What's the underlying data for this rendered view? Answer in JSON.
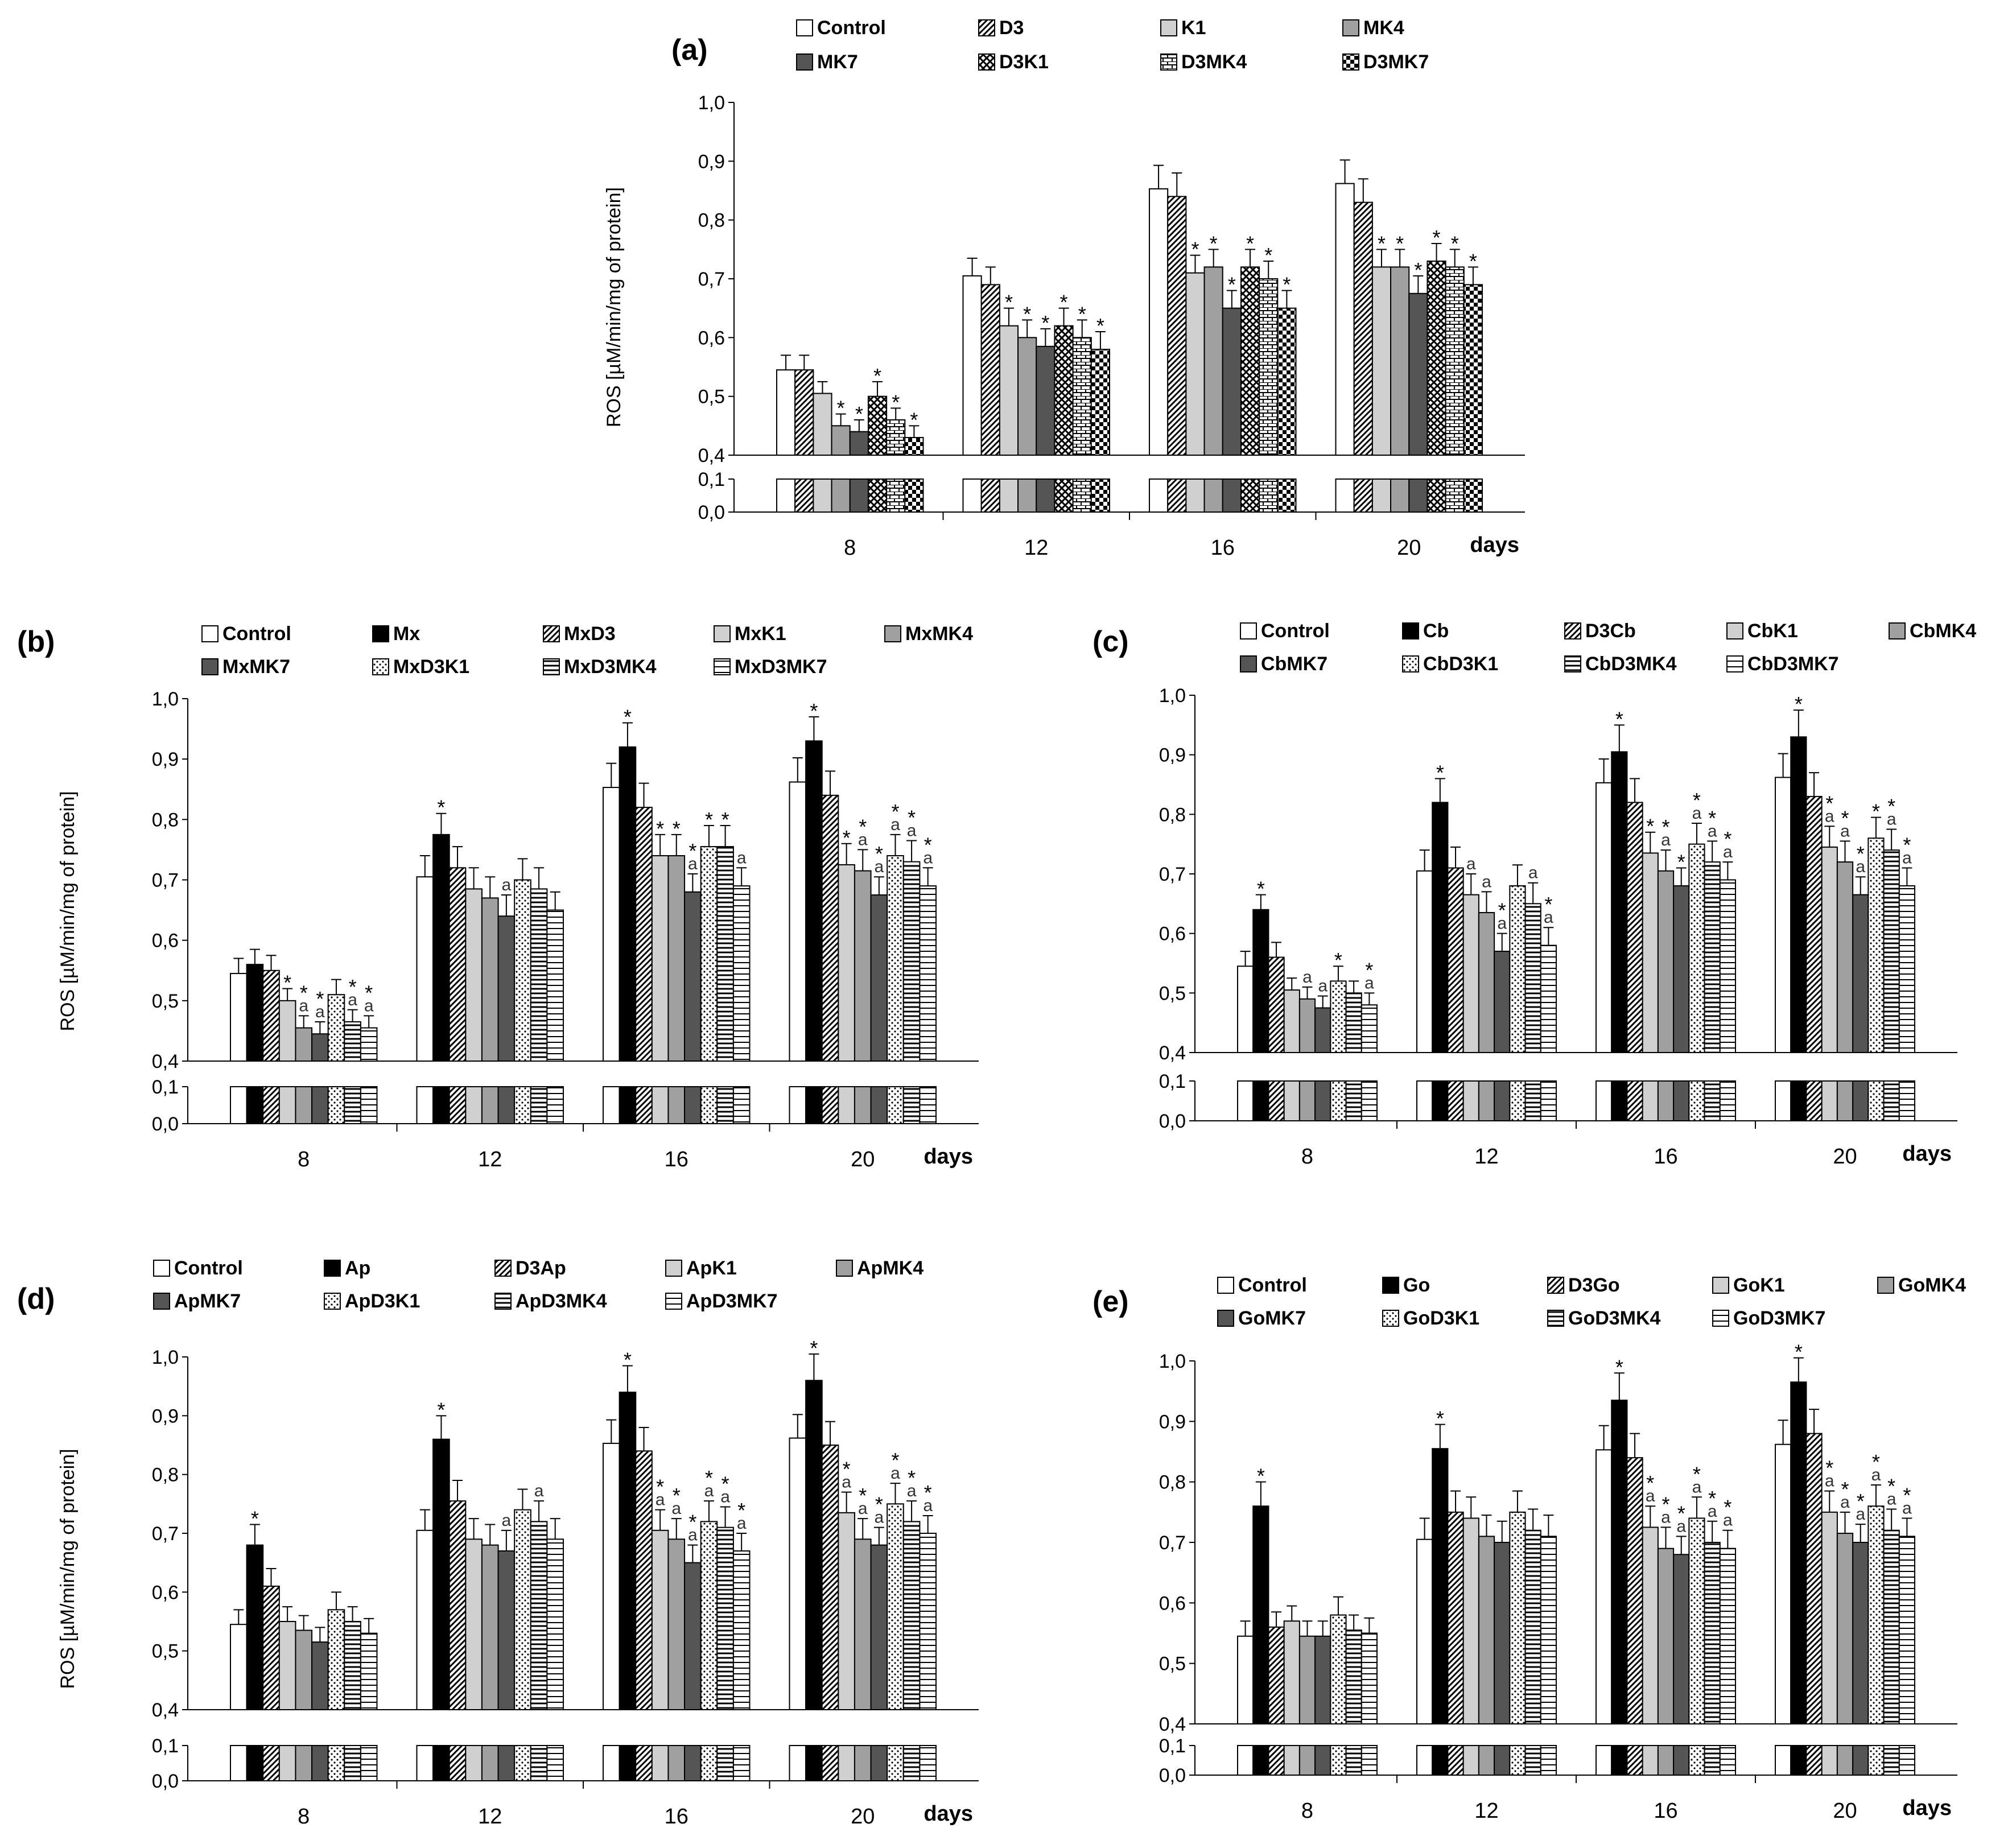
{
  "figure": {
    "y_axis_title": "ROS [µM/min/mg of protein]",
    "days_label": "days",
    "y_ticks_upper": [
      "0,4",
      "0,5",
      "0,6",
      "0,7",
      "0,8",
      "0,9",
      "1,0"
    ],
    "y_ticks_lower": [
      "0,0",
      "0,1"
    ]
  },
  "chart_data": [
    {
      "panel": "(a)",
      "type": "bar",
      "categories": [
        "8",
        "12",
        "16",
        "20"
      ],
      "xlabel": "days",
      "ylabel": "ROS [µM/min/mg of protein]",
      "ylim": [
        0.4,
        1.0
      ],
      "broken_axis_lower": [
        0.0,
        0.1
      ],
      "series": [
        {
          "name": "Control",
          "pattern": "white",
          "values": [
            0.545,
            0.705,
            0.853,
            0.862
          ],
          "errors": [
            0.025,
            0.03,
            0.04,
            0.04
          ],
          "marks": [
            "",
            "",
            "",
            ""
          ]
        },
        {
          "name": "D3",
          "pattern": "diag",
          "values": [
            0.545,
            0.69,
            0.84,
            0.83
          ],
          "errors": [
            0.025,
            0.03,
            0.04,
            0.04
          ],
          "marks": [
            "",
            "",
            "",
            ""
          ]
        },
        {
          "name": "K1",
          "pattern": "lightgray",
          "values": [
            0.505,
            0.62,
            0.71,
            0.72
          ],
          "errors": [
            0.02,
            0.03,
            0.03,
            0.03
          ],
          "marks": [
            "",
            "*",
            "*",
            "*"
          ]
        },
        {
          "name": "MK4",
          "pattern": "midgray",
          "values": [
            0.45,
            0.6,
            0.72,
            0.72
          ],
          "errors": [
            0.02,
            0.03,
            0.03,
            0.03
          ],
          "marks": [
            "*",
            "*",
            "*",
            "*"
          ]
        },
        {
          "name": "MK7",
          "pattern": "darkgray",
          "values": [
            0.44,
            0.585,
            0.65,
            0.675
          ],
          "errors": [
            0.02,
            0.03,
            0.03,
            0.03
          ],
          "marks": [
            "*",
            "*",
            "*",
            "*"
          ]
        },
        {
          "name": "D3K1",
          "pattern": "crosshatch",
          "values": [
            0.5,
            0.62,
            0.72,
            0.73
          ],
          "errors": [
            0.025,
            0.03,
            0.03,
            0.03
          ],
          "marks": [
            "*",
            "*",
            "*",
            "*"
          ]
        },
        {
          "name": "D3MK4",
          "pattern": "brick",
          "values": [
            0.46,
            0.6,
            0.7,
            0.72
          ],
          "errors": [
            0.02,
            0.03,
            0.03,
            0.03
          ],
          "marks": [
            "*",
            "*",
            "*",
            "*"
          ]
        },
        {
          "name": "D3MK7",
          "pattern": "checker",
          "values": [
            0.43,
            0.58,
            0.65,
            0.69
          ],
          "errors": [
            0.02,
            0.03,
            0.03,
            0.03
          ],
          "marks": [
            "*",
            "*",
            "*",
            "*"
          ]
        }
      ]
    },
    {
      "panel": "(b)",
      "type": "bar",
      "categories": [
        "8",
        "12",
        "16",
        "20"
      ],
      "xlabel": "days",
      "ylabel": "ROS [µM/min/mg of protein]",
      "ylim": [
        0.4,
        1.0
      ],
      "broken_axis_lower": [
        0.0,
        0.1
      ],
      "series": [
        {
          "name": "Control",
          "pattern": "white",
          "values": [
            0.545,
            0.705,
            0.853,
            0.862
          ],
          "errors": [
            0.025,
            0.035,
            0.04,
            0.04
          ],
          "marks": [
            "",
            "",
            "",
            ""
          ]
        },
        {
          "name": "Mx",
          "pattern": "black",
          "values": [
            0.56,
            0.775,
            0.92,
            0.93
          ],
          "errors": [
            0.025,
            0.035,
            0.04,
            0.04
          ],
          "marks": [
            "",
            "*",
            "*",
            "*"
          ]
        },
        {
          "name": "MxD3",
          "pattern": "diag",
          "values": [
            0.55,
            0.72,
            0.82,
            0.84
          ],
          "errors": [
            0.025,
            0.035,
            0.04,
            0.04
          ],
          "marks": [
            "",
            "",
            "",
            ""
          ]
        },
        {
          "name": "MxK1",
          "pattern": "lightgray",
          "values": [
            0.5,
            0.685,
            0.74,
            0.725
          ],
          "errors": [
            0.02,
            0.035,
            0.035,
            0.035
          ],
          "marks": [
            "*",
            "",
            "*",
            "*"
          ]
        },
        {
          "name": "MxMK4",
          "pattern": "midgray",
          "values": [
            0.455,
            0.67,
            0.74,
            0.715
          ],
          "errors": [
            0.02,
            0.035,
            0.035,
            0.035
          ],
          "marks": [
            "*a",
            "",
            "*",
            "*a"
          ]
        },
        {
          "name": "MxMK7",
          "pattern": "darkgray",
          "values": [
            0.445,
            0.64,
            0.68,
            0.675
          ],
          "errors": [
            0.02,
            0.035,
            0.03,
            0.03
          ],
          "marks": [
            "*a",
            "a",
            "*a",
            "*a"
          ]
        },
        {
          "name": "MxD3K1",
          "pattern": "dots",
          "values": [
            0.51,
            0.7,
            0.755,
            0.74
          ],
          "errors": [
            0.025,
            0.035,
            0.035,
            0.035
          ],
          "marks": [
            "",
            "",
            "*",
            "*a"
          ]
        },
        {
          "name": "MxD3MK4",
          "pattern": "hlines",
          "values": [
            0.465,
            0.685,
            0.755,
            0.73
          ],
          "errors": [
            0.02,
            0.035,
            0.035,
            0.035
          ],
          "marks": [
            "*a",
            "",
            "*",
            "*a"
          ]
        },
        {
          "name": "MxD3MK7",
          "pattern": "hlines2",
          "values": [
            0.455,
            0.65,
            0.69,
            0.69
          ],
          "errors": [
            0.02,
            0.03,
            0.03,
            0.03
          ],
          "marks": [
            "*a",
            "",
            "a",
            "*a"
          ]
        }
      ]
    },
    {
      "panel": "(c)",
      "type": "bar",
      "categories": [
        "8",
        "12",
        "16",
        "20"
      ],
      "xlabel": "days",
      "ylabel": "",
      "ylim": [
        0.4,
        1.0
      ],
      "broken_axis_lower": [
        0.0,
        0.1
      ],
      "series": [
        {
          "name": "Control",
          "pattern": "white",
          "values": [
            0.545,
            0.705,
            0.853,
            0.862
          ],
          "errors": [
            0.025,
            0.035,
            0.04,
            0.04
          ],
          "marks": [
            "",
            "",
            "",
            ""
          ]
        },
        {
          "name": "Cb",
          "pattern": "black",
          "values": [
            0.64,
            0.82,
            0.905,
            0.93
          ],
          "errors": [
            0.025,
            0.04,
            0.045,
            0.045
          ],
          "marks": [
            "*",
            "*",
            "*",
            "*"
          ]
        },
        {
          "name": "D3Cb",
          "pattern": "diag",
          "values": [
            0.56,
            0.71,
            0.82,
            0.83
          ],
          "errors": [
            0.025,
            0.035,
            0.04,
            0.04
          ],
          "marks": [
            "",
            "",
            "",
            ""
          ]
        },
        {
          "name": "CbK1",
          "pattern": "lightgray",
          "values": [
            0.505,
            0.665,
            0.735,
            0.745
          ],
          "errors": [
            0.02,
            0.035,
            0.035,
            0.035
          ],
          "marks": [
            "",
            "a",
            "*",
            "*a"
          ]
        },
        {
          "name": "CbMK4",
          "pattern": "midgray",
          "values": [
            0.49,
            0.635,
            0.705,
            0.72
          ],
          "errors": [
            0.02,
            0.035,
            0.035,
            0.035
          ],
          "marks": [
            "a",
            "a",
            "*a",
            "*a"
          ]
        },
        {
          "name": "CbMK7",
          "pattern": "darkgray",
          "values": [
            0.475,
            0.57,
            0.68,
            0.665
          ],
          "errors": [
            0.02,
            0.03,
            0.03,
            0.03
          ],
          "marks": [
            "a",
            "*a",
            "*",
            "*a"
          ]
        },
        {
          "name": "CbD3K1",
          "pattern": "dots",
          "values": [
            0.52,
            0.68,
            0.75,
            0.76
          ],
          "errors": [
            0.025,
            0.035,
            0.035,
            0.035
          ],
          "marks": [
            "*",
            "",
            "*a",
            "*"
          ]
        },
        {
          "name": "CbD3MK4",
          "pattern": "hlines",
          "values": [
            0.5,
            0.65,
            0.72,
            0.74
          ],
          "errors": [
            0.02,
            0.035,
            0.035,
            0.035
          ],
          "marks": [
            "",
            "a",
            "*a",
            "*a"
          ]
        },
        {
          "name": "CbD3MK7",
          "pattern": "hlines2",
          "values": [
            0.48,
            0.58,
            0.69,
            0.68
          ],
          "errors": [
            0.02,
            0.03,
            0.03,
            0.03
          ],
          "marks": [
            "*a",
            "*a",
            "*a",
            "*a"
          ]
        }
      ]
    },
    {
      "panel": "(d)",
      "type": "bar",
      "categories": [
        "8",
        "12",
        "16",
        "20"
      ],
      "xlabel": "days",
      "ylabel": "ROS [µM/min/mg of protein]",
      "ylim": [
        0.4,
        1.0
      ],
      "broken_axis_lower": [
        0.0,
        0.1
      ],
      "series": [
        {
          "name": "Control",
          "pattern": "white",
          "values": [
            0.545,
            0.705,
            0.853,
            0.862
          ],
          "errors": [
            0.025,
            0.035,
            0.04,
            0.04
          ],
          "marks": [
            "",
            "",
            "",
            ""
          ]
        },
        {
          "name": "Ap",
          "pattern": "black",
          "values": [
            0.68,
            0.86,
            0.94,
            0.96
          ],
          "errors": [
            0.035,
            0.04,
            0.045,
            0.045
          ],
          "marks": [
            "*",
            "*",
            "*",
            "*"
          ]
        },
        {
          "name": "D3Ap",
          "pattern": "diag",
          "values": [
            0.61,
            0.755,
            0.84,
            0.85
          ],
          "errors": [
            0.03,
            0.035,
            0.04,
            0.04
          ],
          "marks": [
            "",
            "",
            "",
            ""
          ]
        },
        {
          "name": "ApK1",
          "pattern": "lightgray",
          "values": [
            0.55,
            0.69,
            0.705,
            0.735
          ],
          "errors": [
            0.025,
            0.035,
            0.035,
            0.035
          ],
          "marks": [
            "",
            "",
            "*a",
            "*a"
          ]
        },
        {
          "name": "ApMK4",
          "pattern": "midgray",
          "values": [
            0.535,
            0.68,
            0.69,
            0.69
          ],
          "errors": [
            0.025,
            0.035,
            0.035,
            0.035
          ],
          "marks": [
            "",
            "",
            "*a",
            "*a"
          ]
        },
        {
          "name": "ApMK7",
          "pattern": "darkgray",
          "values": [
            0.515,
            0.67,
            0.65,
            0.68
          ],
          "errors": [
            0.025,
            0.035,
            0.03,
            0.03
          ],
          "marks": [
            "",
            "a",
            "*a",
            "*a"
          ]
        },
        {
          "name": "ApD3K1",
          "pattern": "dots",
          "values": [
            0.57,
            0.74,
            0.72,
            0.75
          ],
          "errors": [
            0.03,
            0.035,
            0.035,
            0.035
          ],
          "marks": [
            "",
            "",
            "*a",
            "*a"
          ]
        },
        {
          "name": "ApD3MK4",
          "pattern": "hlines",
          "values": [
            0.55,
            0.72,
            0.71,
            0.72
          ],
          "errors": [
            0.025,
            0.035,
            0.035,
            0.035
          ],
          "marks": [
            "",
            "a",
            "*a",
            "*a"
          ]
        },
        {
          "name": "ApD3MK7",
          "pattern": "hlines2",
          "values": [
            0.53,
            0.69,
            0.67,
            0.7
          ],
          "errors": [
            0.025,
            0.035,
            0.03,
            0.03
          ],
          "marks": [
            "",
            "",
            "*a",
            "*a"
          ]
        }
      ]
    },
    {
      "panel": "(e)",
      "type": "bar",
      "categories": [
        "8",
        "12",
        "16",
        "20"
      ],
      "xlabel": "days",
      "ylabel": "",
      "ylim": [
        0.4,
        1.0
      ],
      "broken_axis_lower": [
        0.0,
        0.1
      ],
      "series": [
        {
          "name": "Control",
          "pattern": "white",
          "values": [
            0.545,
            0.705,
            0.853,
            0.862
          ],
          "errors": [
            0.025,
            0.035,
            0.04,
            0.04
          ],
          "marks": [
            "",
            "",
            "",
            ""
          ]
        },
        {
          "name": "Go",
          "pattern": "black",
          "values": [
            0.76,
            0.855,
            0.935,
            0.965
          ],
          "errors": [
            0.04,
            0.04,
            0.045,
            0.04
          ],
          "marks": [
            "*",
            "*",
            "*",
            "*"
          ]
        },
        {
          "name": "D3Go",
          "pattern": "diag",
          "values": [
            0.56,
            0.75,
            0.84,
            0.88
          ],
          "errors": [
            0.025,
            0.035,
            0.04,
            0.04
          ],
          "marks": [
            "",
            "",
            "",
            ""
          ]
        },
        {
          "name": "GoK1",
          "pattern": "lightgray",
          "values": [
            0.57,
            0.74,
            0.725,
            0.75
          ],
          "errors": [
            0.025,
            0.035,
            0.035,
            0.035
          ],
          "marks": [
            "",
            "",
            "*a",
            "*a"
          ]
        },
        {
          "name": "GoMK4",
          "pattern": "midgray",
          "values": [
            0.545,
            0.71,
            0.69,
            0.715
          ],
          "errors": [
            0.025,
            0.035,
            0.035,
            0.035
          ],
          "marks": [
            "",
            "",
            "*a",
            "*a"
          ]
        },
        {
          "name": "GoMK7",
          "pattern": "darkgray",
          "values": [
            0.545,
            0.7,
            0.68,
            0.7
          ],
          "errors": [
            0.025,
            0.035,
            0.03,
            0.03
          ],
          "marks": [
            "",
            "",
            "*a",
            "*a"
          ]
        },
        {
          "name": "GoD3K1",
          "pattern": "dots",
          "values": [
            0.58,
            0.75,
            0.74,
            0.76
          ],
          "errors": [
            0.03,
            0.035,
            0.035,
            0.035
          ],
          "marks": [
            "",
            "",
            "*a",
            "*a"
          ]
        },
        {
          "name": "GoD3MK4",
          "pattern": "hlines",
          "values": [
            0.555,
            0.72,
            0.7,
            0.72
          ],
          "errors": [
            0.025,
            0.035,
            0.035,
            0.035
          ],
          "marks": [
            "",
            "",
            "*a",
            "*a"
          ]
        },
        {
          "name": "GoD3MK7",
          "pattern": "hlines2",
          "values": [
            0.55,
            0.71,
            0.69,
            0.71
          ],
          "errors": [
            0.025,
            0.035,
            0.03,
            0.03
          ],
          "marks": [
            "",
            "",
            "*a",
            "*a"
          ]
        }
      ]
    }
  ]
}
